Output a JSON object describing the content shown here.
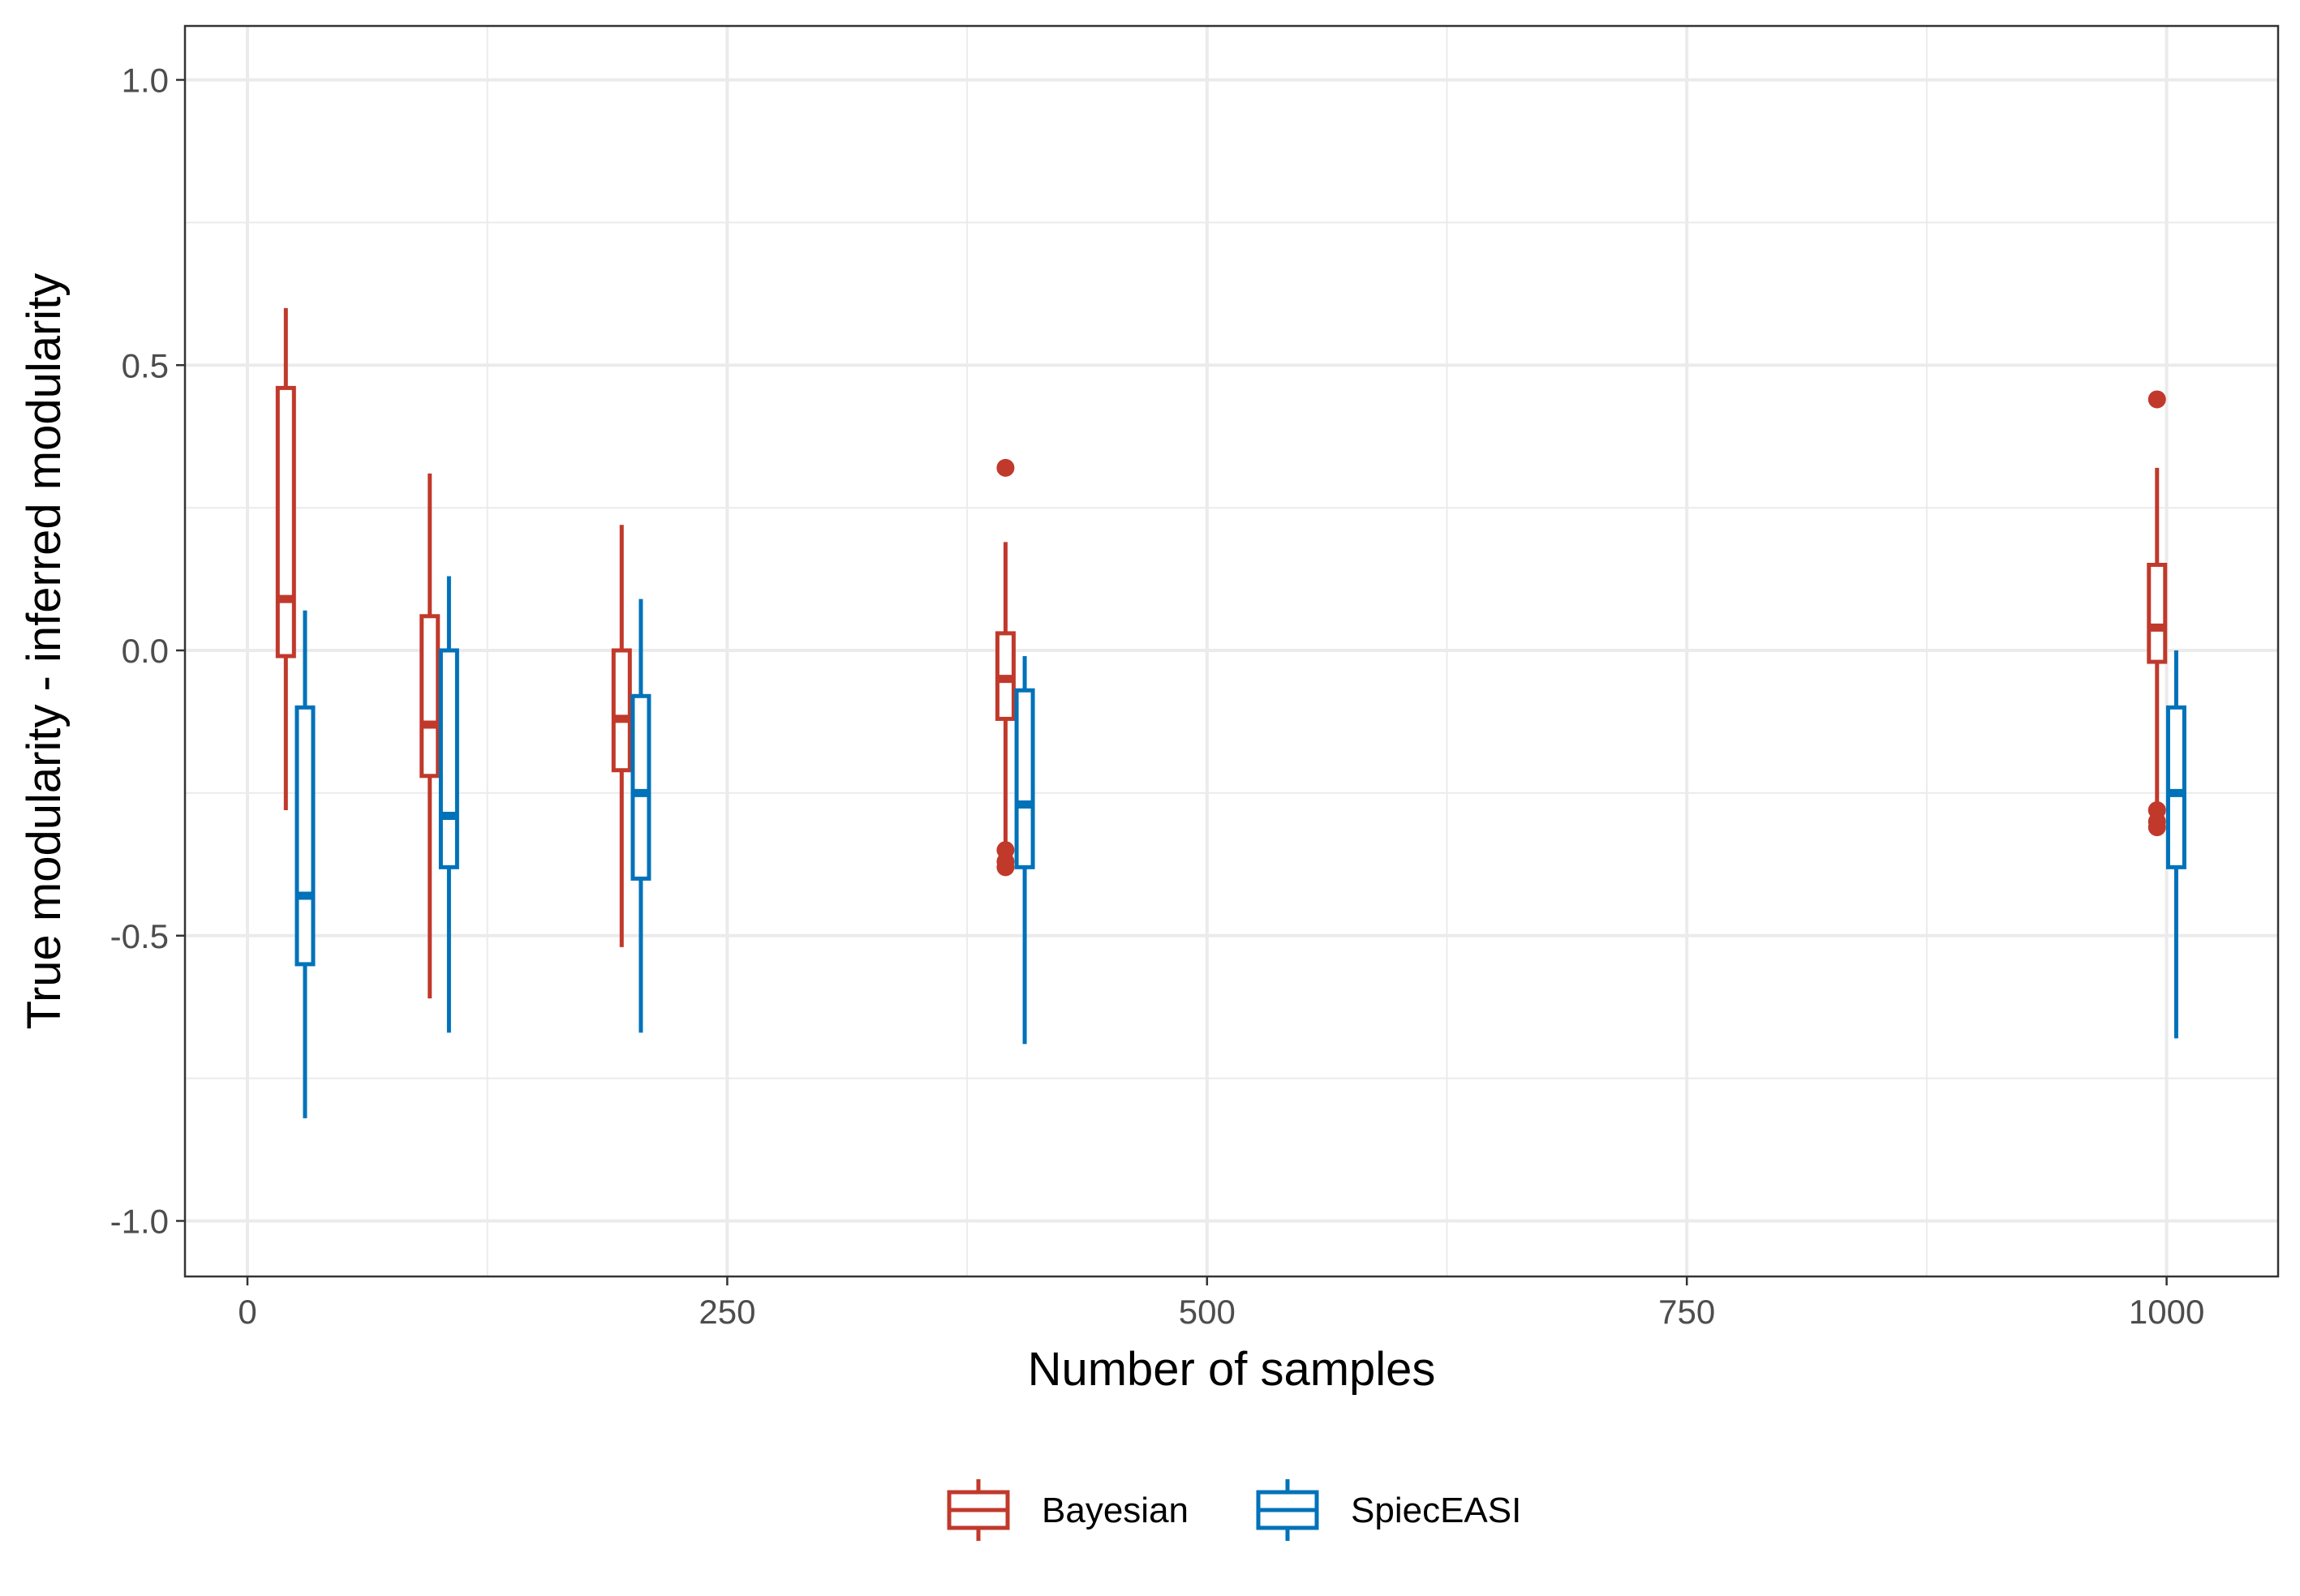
{
  "chart_data": {
    "type": "boxplot",
    "xlabel": "Number of samples",
    "ylabel": "True modularity - inferred modularity",
    "xlim": [
      -65,
      1055
    ],
    "ylim": [
      -1.1,
      1.1
    ],
    "x_ticks": [
      0,
      250,
      500,
      750,
      1000
    ],
    "x_tick_labels": [
      "0",
      "250",
      "500",
      "750",
      "1000"
    ],
    "y_ticks": [
      1.0,
      0.5,
      0.0,
      -0.5,
      -1.0
    ],
    "y_tick_labels": [
      "1.0",
      "0.5",
      "0.0",
      "-0.5",
      "-1.0"
    ],
    "grid": true,
    "legend_position": "bottom",
    "colors": {
      "Bayesian": "#c0392b",
      "SpiecEASI": "#0072b9"
    },
    "series": [
      {
        "name": "Bayesian",
        "boxes": [
          {
            "x": 20,
            "whisker_low": -0.28,
            "q1": -0.01,
            "median": 0.09,
            "q3": 0.46,
            "whisker_high": 0.6,
            "outliers": []
          },
          {
            "x": 95,
            "whisker_low": -0.61,
            "q1": -0.22,
            "median": -0.13,
            "q3": 0.06,
            "whisker_high": 0.31,
            "outliers": []
          },
          {
            "x": 195,
            "whisker_low": -0.52,
            "q1": -0.21,
            "median": -0.12,
            "q3": 0.0,
            "whisker_high": 0.22,
            "outliers": []
          },
          {
            "x": 395,
            "whisker_low": -0.35,
            "q1": -0.12,
            "median": -0.05,
            "q3": 0.03,
            "whisker_high": 0.19,
            "outliers": [
              0.32,
              -0.35,
              -0.37,
              -0.38
            ]
          },
          {
            "x": 995,
            "whisker_low": -0.27,
            "q1": -0.02,
            "median": 0.04,
            "q3": 0.15,
            "whisker_high": 0.32,
            "outliers": [
              0.44,
              -0.28,
              -0.3,
              -0.31
            ]
          }
        ]
      },
      {
        "name": "SpiecEASI",
        "boxes": [
          {
            "x": 30,
            "whisker_low": -0.82,
            "q1": -0.55,
            "median": -0.43,
            "q3": -0.1,
            "whisker_high": 0.07,
            "outliers": []
          },
          {
            "x": 105,
            "whisker_low": -0.67,
            "q1": -0.38,
            "median": -0.29,
            "q3": 0.0,
            "whisker_high": 0.13,
            "outliers": []
          },
          {
            "x": 205,
            "whisker_low": -0.67,
            "q1": -0.4,
            "median": -0.25,
            "q3": -0.08,
            "whisker_high": 0.09,
            "outliers": []
          },
          {
            "x": 405,
            "whisker_low": -0.69,
            "q1": -0.38,
            "median": -0.27,
            "q3": -0.07,
            "whisker_high": -0.01,
            "outliers": []
          },
          {
            "x": 1005,
            "whisker_low": -0.68,
            "q1": -0.38,
            "median": -0.25,
            "q3": -0.1,
            "whisker_high": 0.0,
            "outliers": []
          }
        ]
      }
    ]
  }
}
